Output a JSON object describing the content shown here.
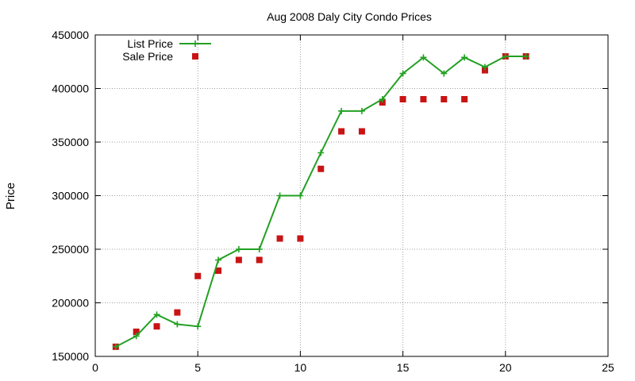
{
  "chart_data": {
    "type": "line",
    "title": "Aug 2008 Daly City Condo Prices",
    "xlabel": "",
    "ylabel": "Price",
    "xlim": [
      0,
      25
    ],
    "ylim": [
      150000,
      450000
    ],
    "xticks": [
      "0",
      "5",
      "10",
      "15",
      "20",
      "25"
    ],
    "yticks": [
      "150000",
      "200000",
      "250000",
      "300000",
      "350000",
      "400000",
      "450000"
    ],
    "grid": true,
    "legend_position": "top-left",
    "series": [
      {
        "name": "List Price",
        "style": "line-plus",
        "color": "#22a022",
        "x": [
          1,
          2,
          3,
          4,
          5,
          6,
          7,
          8,
          9,
          10,
          11,
          12,
          13,
          14,
          15,
          16,
          17,
          18,
          19,
          20,
          21
        ],
        "y": [
          159000,
          169000,
          189000,
          180000,
          178000,
          240000,
          250000,
          250000,
          300000,
          300000,
          340000,
          379000,
          379000,
          390000,
          414000,
          429000,
          414000,
          429000,
          420000,
          430000,
          430000
        ]
      },
      {
        "name": "Sale Price",
        "style": "square-points",
        "color": "#c81414",
        "x": [
          1,
          2,
          3,
          4,
          5,
          6,
          7,
          8,
          9,
          10,
          11,
          12,
          13,
          14,
          15,
          16,
          17,
          18,
          19,
          20,
          21
        ],
        "y": [
          159000,
          173000,
          178000,
          191000,
          225000,
          230000,
          240000,
          240000,
          260000,
          260000,
          325000,
          360000,
          360000,
          387000,
          390000,
          390000,
          390000,
          390000,
          417000,
          430000,
          430000
        ]
      }
    ]
  }
}
